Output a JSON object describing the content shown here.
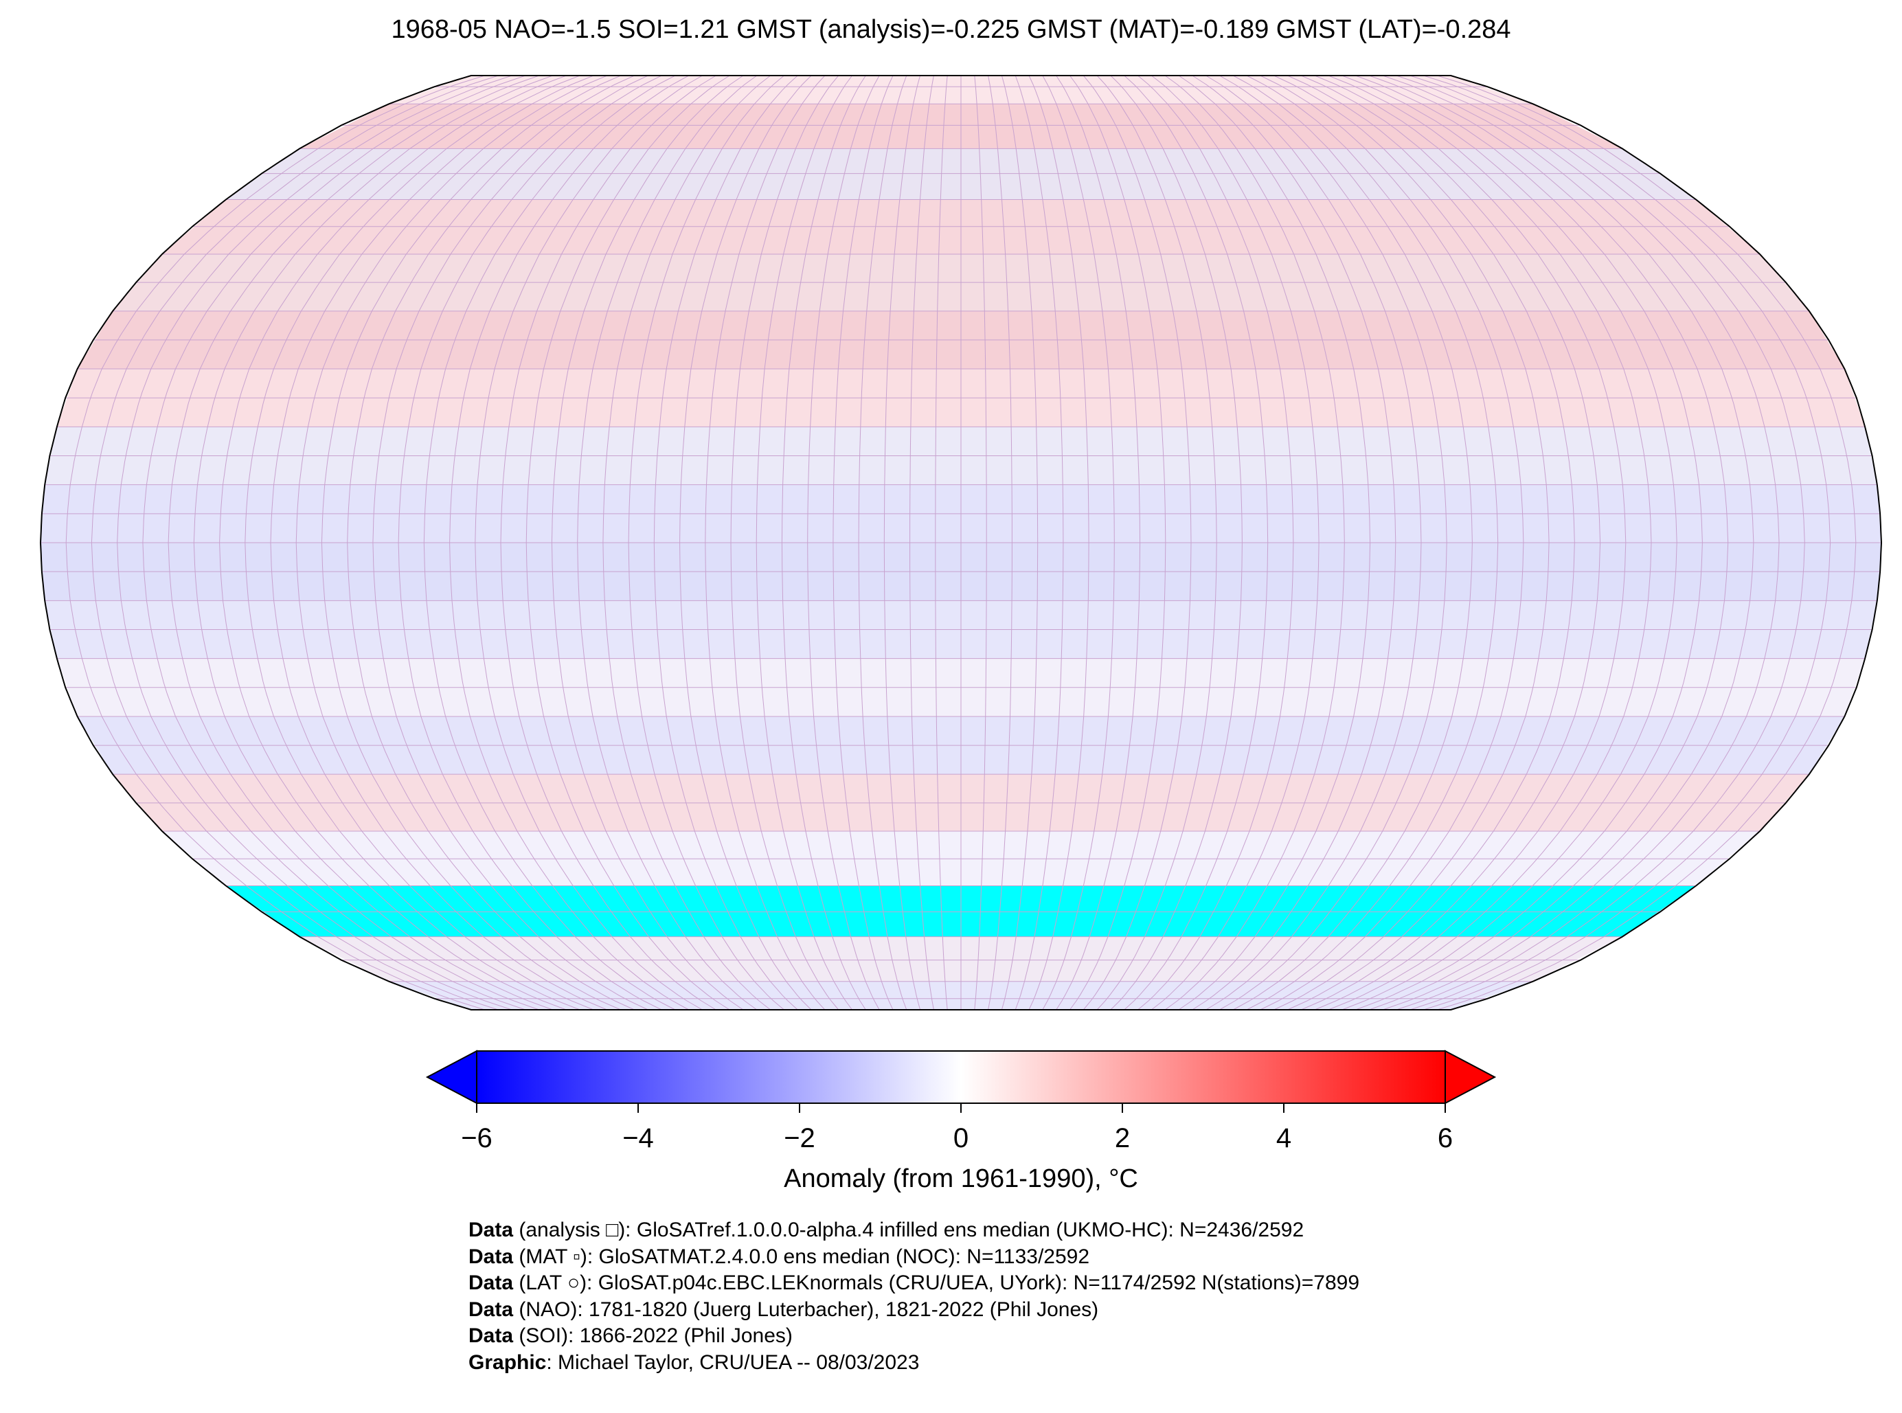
{
  "title": "1968-05 NAO=-1.5 SOI=1.21 GMST (analysis)=-0.225 GMST (MAT)=-0.189 GMST (LAT)=-0.284",
  "map": {
    "projection": "Robinson",
    "lat_band_colors": [
      {
        "lat": 85,
        "color": "#fbe6ea"
      },
      {
        "lat": 75,
        "color": "#f6cfd5"
      },
      {
        "lat": 65,
        "color": "#e9e4f3"
      },
      {
        "lat": 55,
        "color": "#f7d7dc"
      },
      {
        "lat": 45,
        "color": "#f4dde2"
      },
      {
        "lat": 35,
        "color": "#f5d0d6"
      },
      {
        "lat": 25,
        "color": "#fadfe3"
      },
      {
        "lat": 15,
        "color": "#ebeaf8"
      },
      {
        "lat": 5,
        "color": "#e3e3fb"
      },
      {
        "lat": -5,
        "color": "#dedffa"
      },
      {
        "lat": -15,
        "color": "#e6e6fb"
      },
      {
        "lat": -25,
        "color": "#f3f0fa"
      },
      {
        "lat": -35,
        "color": "#e4e4fb"
      },
      {
        "lat": -45,
        "color": "#f8dde2"
      },
      {
        "lat": -55,
        "color": "#f3f1fc"
      },
      {
        "lat": -65,
        "color": "#00ffff"
      },
      {
        "lat": -75,
        "color": "#f2eaf4"
      },
      {
        "lat": -85,
        "color": "#e6e6fb"
      }
    ],
    "no_data_color": "#00ffff"
  },
  "colorbar": {
    "ticks": [
      "−6",
      "−4",
      "−2",
      "0",
      "2",
      "4",
      "6"
    ],
    "label": "Anomaly (from 1961-1990), °C",
    "color_low": "#0000ff",
    "color_mid": "#ffffff",
    "color_high": "#ff0000"
  },
  "credits": [
    {
      "bold": "Data",
      "text": " (analysis □): GloSATref.1.0.0.0-alpha.4 infilled ens median (UKMO-HC): N=2436/2592"
    },
    {
      "bold": "Data",
      "text": " (MAT ▫): GloSATMAT.2.4.0.0 ens median (NOC): N=1133/2592"
    },
    {
      "bold": "Data",
      "text": " (LAT ○): GloSAT.p04c.EBC.LEKnormals (CRU/UEA, UYork): N=1174/2592 N(stations)=7899"
    },
    {
      "bold": "Data",
      "text": " (NAO): 1781-1820 (Juerg Luterbacher), 1821-2022 (Phil Jones)"
    },
    {
      "bold": "Data",
      "text": " (SOI): 1866-2022 (Phil Jones)"
    },
    {
      "bold": "Graphic",
      "text": ": Michael Taylor, CRU/UEA -- 08/03/2023"
    }
  ]
}
